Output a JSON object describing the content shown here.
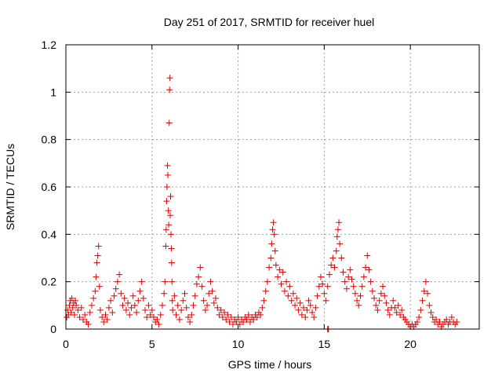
{
  "chart_data": {
    "type": "scatter",
    "title": "Day 251 of 2017, SRMTID for receiver huel",
    "xlabel": "GPS time / hours",
    "ylabel": "SRMTID / TECUs",
    "xlim": [
      0,
      24
    ],
    "ylim": [
      0,
      1.2
    ],
    "xticks": [
      0,
      5,
      10,
      15,
      20
    ],
    "yticks": [
      0,
      0.2,
      0.4,
      0.6,
      0.8,
      1,
      1.2
    ],
    "xtick_labels": [
      "0",
      "5",
      "10",
      "15",
      "20"
    ],
    "ytick_labels": [
      "0",
      "0.2",
      "0.4",
      "0.6",
      "0.8",
      "1",
      "1.2"
    ],
    "grid": true,
    "legend": "none",
    "marker": "plus",
    "color": "#dd0000",
    "series": [
      {
        "points": [
          [
            0.05,
            0.05
          ],
          [
            0.1,
            0.08
          ],
          [
            0.15,
            0.06
          ],
          [
            0.2,
            0.1
          ],
          [
            0.25,
            0.12
          ],
          [
            0.3,
            0.07
          ],
          [
            0.35,
            0.13
          ],
          [
            0.4,
            0.09
          ],
          [
            0.45,
            0.11
          ],
          [
            0.5,
            0.06
          ],
          [
            0.55,
            0.12
          ],
          [
            0.6,
            0.1
          ],
          [
            0.7,
            0.08
          ],
          [
            0.8,
            0.05
          ],
          [
            0.9,
            0.09
          ],
          [
            1.0,
            0.04
          ],
          [
            1.1,
            0.06
          ],
          [
            1.2,
            0.03
          ],
          [
            1.3,
            0.02
          ],
          [
            1.4,
            0.07
          ],
          [
            1.5,
            0.1
          ],
          [
            1.6,
            0.13
          ],
          [
            1.7,
            0.16
          ],
          [
            1.75,
            0.22
          ],
          [
            1.8,
            0.28
          ],
          [
            1.85,
            0.31
          ],
          [
            1.9,
            0.35
          ],
          [
            1.95,
            0.18
          ],
          [
            2.0,
            0.08
          ],
          [
            2.1,
            0.05
          ],
          [
            2.2,
            0.03
          ],
          [
            2.3,
            0.06
          ],
          [
            2.4,
            0.04
          ],
          [
            2.5,
            0.09
          ],
          [
            2.6,
            0.12
          ],
          [
            2.7,
            0.07
          ],
          [
            2.8,
            0.14
          ],
          [
            2.9,
            0.17
          ],
          [
            3.0,
            0.2
          ],
          [
            3.1,
            0.23
          ],
          [
            3.2,
            0.15
          ],
          [
            3.3,
            0.1
          ],
          [
            3.4,
            0.13
          ],
          [
            3.5,
            0.08
          ],
          [
            3.6,
            0.11
          ],
          [
            3.7,
            0.06
          ],
          [
            3.8,
            0.09
          ],
          [
            3.9,
            0.14
          ],
          [
            4.0,
            0.1
          ],
          [
            4.1,
            0.07
          ],
          [
            4.2,
            0.12
          ],
          [
            4.3,
            0.16
          ],
          [
            4.4,
            0.2
          ],
          [
            4.5,
            0.13
          ],
          [
            4.6,
            0.08
          ],
          [
            4.7,
            0.05
          ],
          [
            4.8,
            0.1
          ],
          [
            4.9,
            0.06
          ],
          [
            5.0,
            0.08
          ],
          [
            5.1,
            0.05
          ],
          [
            5.2,
            0.03
          ],
          [
            5.3,
            0.04
          ],
          [
            5.4,
            0.02
          ],
          [
            5.5,
            0.06
          ],
          [
            5.6,
            0.1
          ],
          [
            5.7,
            0.15
          ],
          [
            5.75,
            0.2
          ],
          [
            5.8,
            0.35
          ],
          [
            5.82,
            0.42
          ],
          [
            5.85,
            0.54
          ],
          [
            5.87,
            0.6
          ],
          [
            5.9,
            0.69
          ],
          [
            5.92,
            0.65
          ],
          [
            5.95,
            0.5
          ],
          [
            5.97,
            0.44
          ],
          [
            6.0,
            0.87
          ],
          [
            6.02,
            1.01
          ],
          [
            6.04,
            1.06
          ],
          [
            6.06,
            0.48
          ],
          [
            6.08,
            0.56
          ],
          [
            6.1,
            0.4
          ],
          [
            6.12,
            0.34
          ],
          [
            6.14,
            0.28
          ],
          [
            6.16,
            0.2
          ],
          [
            6.18,
            0.12
          ],
          [
            6.2,
            0.08
          ],
          [
            6.3,
            0.14
          ],
          [
            6.4,
            0.06
          ],
          [
            6.5,
            0.1
          ],
          [
            6.6,
            0.04
          ],
          [
            6.7,
            0.08
          ],
          [
            6.8,
            0.12
          ],
          [
            6.9,
            0.15
          ],
          [
            7.0,
            0.09
          ],
          [
            7.1,
            0.05
          ],
          [
            7.2,
            0.03
          ],
          [
            7.3,
            0.06
          ],
          [
            7.4,
            0.1
          ],
          [
            7.5,
            0.14
          ],
          [
            7.6,
            0.19
          ],
          [
            7.7,
            0.22
          ],
          [
            7.8,
            0.26
          ],
          [
            7.9,
            0.18
          ],
          [
            8.0,
            0.12
          ],
          [
            8.1,
            0.08
          ],
          [
            8.2,
            0.1
          ],
          [
            8.3,
            0.15
          ],
          [
            8.4,
            0.2
          ],
          [
            8.5,
            0.16
          ],
          [
            8.6,
            0.11
          ],
          [
            8.7,
            0.13
          ],
          [
            8.8,
            0.09
          ],
          [
            8.9,
            0.06
          ],
          [
            9.0,
            0.08
          ],
          [
            9.1,
            0.05
          ],
          [
            9.2,
            0.07
          ],
          [
            9.3,
            0.04
          ],
          [
            9.4,
            0.06
          ],
          [
            9.5,
            0.03
          ],
          [
            9.6,
            0.05
          ],
          [
            9.7,
            0.02
          ],
          [
            9.8,
            0.04
          ],
          [
            9.9,
            0.03
          ],
          [
            10.0,
            0.05
          ],
          [
            10.1,
            0.02
          ],
          [
            10.2,
            0.04
          ],
          [
            10.3,
            0.03
          ],
          [
            10.4,
            0.05
          ],
          [
            10.5,
            0.04
          ],
          [
            10.6,
            0.06
          ],
          [
            10.7,
            0.03
          ],
          [
            10.8,
            0.05
          ],
          [
            10.9,
            0.04
          ],
          [
            11.0,
            0.06
          ],
          [
            11.1,
            0.05
          ],
          [
            11.2,
            0.07
          ],
          [
            11.3,
            0.06
          ],
          [
            11.4,
            0.09
          ],
          [
            11.5,
            0.12
          ],
          [
            11.6,
            0.16
          ],
          [
            11.7,
            0.2
          ],
          [
            11.8,
            0.26
          ],
          [
            11.9,
            0.3
          ],
          [
            11.95,
            0.36
          ],
          [
            12.0,
            0.42
          ],
          [
            12.05,
            0.45
          ],
          [
            12.1,
            0.4
          ],
          [
            12.15,
            0.33
          ],
          [
            12.2,
            0.27
          ],
          [
            12.3,
            0.22
          ],
          [
            12.4,
            0.25
          ],
          [
            12.5,
            0.19
          ],
          [
            12.6,
            0.24
          ],
          [
            12.7,
            0.16
          ],
          [
            12.8,
            0.2
          ],
          [
            12.9,
            0.14
          ],
          [
            13.0,
            0.18
          ],
          [
            13.1,
            0.12
          ],
          [
            13.2,
            0.15
          ],
          [
            13.3,
            0.1
          ],
          [
            13.4,
            0.13
          ],
          [
            13.5,
            0.08
          ],
          [
            13.6,
            0.11
          ],
          [
            13.7,
            0.06
          ],
          [
            13.8,
            0.09
          ],
          [
            13.9,
            0.05
          ],
          [
            14.0,
            0.08
          ],
          [
            14.1,
            0.12
          ],
          [
            14.2,
            0.1
          ],
          [
            14.3,
            0.07
          ],
          [
            14.4,
            0.05
          ],
          [
            14.5,
            0.09
          ],
          [
            14.6,
            0.14
          ],
          [
            14.7,
            0.18
          ],
          [
            14.8,
            0.22
          ],
          [
            14.9,
            0.19
          ],
          [
            15.0,
            0.15
          ],
          [
            15.1,
            0.12
          ],
          [
            15.2,
            0.18
          ],
          [
            15.3,
            0.23
          ],
          [
            15.4,
            0.27
          ],
          [
            15.5,
            0.3
          ],
          [
            15.6,
            0.26
          ],
          [
            15.7,
            0.33
          ],
          [
            15.75,
            0.39
          ],
          [
            15.8,
            0.42
          ],
          [
            15.85,
            0.45
          ],
          [
            15.9,
            0.36
          ],
          [
            16.0,
            0.3
          ],
          [
            16.1,
            0.24
          ],
          [
            16.2,
            0.2
          ],
          [
            16.3,
            0.17
          ],
          [
            16.4,
            0.22
          ],
          [
            16.5,
            0.25
          ],
          [
            16.6,
            0.21
          ],
          [
            16.7,
            0.18
          ],
          [
            16.8,
            0.15
          ],
          [
            16.9,
            0.12
          ],
          [
            17.0,
            0.1
          ],
          [
            17.1,
            0.14
          ],
          [
            17.2,
            0.18
          ],
          [
            17.3,
            0.22
          ],
          [
            17.4,
            0.26
          ],
          [
            17.5,
            0.31
          ],
          [
            17.6,
            0.25
          ],
          [
            17.7,
            0.2
          ],
          [
            17.8,
            0.16
          ],
          [
            17.9,
            0.13
          ],
          [
            18.0,
            0.1
          ],
          [
            18.1,
            0.08
          ],
          [
            18.2,
            0.12
          ],
          [
            18.3,
            0.15
          ],
          [
            18.4,
            0.18
          ],
          [
            18.5,
            0.14
          ],
          [
            18.6,
            0.11
          ],
          [
            18.7,
            0.08
          ],
          [
            18.8,
            0.06
          ],
          [
            18.9,
            0.09
          ],
          [
            19.0,
            0.12
          ],
          [
            19.1,
            0.09
          ],
          [
            19.2,
            0.07
          ],
          [
            19.3,
            0.1
          ],
          [
            19.4,
            0.06
          ],
          [
            19.5,
            0.08
          ],
          [
            19.6,
            0.05
          ],
          [
            19.7,
            0.04
          ],
          [
            19.8,
            0.03
          ],
          [
            19.9,
            0.02
          ],
          [
            20.0,
            0.01
          ],
          [
            20.1,
            0.02
          ],
          [
            20.2,
            0.01
          ],
          [
            20.3,
            0.02
          ],
          [
            20.4,
            0.03
          ],
          [
            20.5,
            0.05
          ],
          [
            20.6,
            0.08
          ],
          [
            20.7,
            0.12
          ],
          [
            20.8,
            0.16
          ],
          [
            20.9,
            0.2
          ],
          [
            21.0,
            0.15
          ],
          [
            21.1,
            0.1
          ],
          [
            21.2,
            0.07
          ],
          [
            21.3,
            0.05
          ],
          [
            21.4,
            0.03
          ],
          [
            21.5,
            0.04
          ],
          [
            21.6,
            0.02
          ],
          [
            21.7,
            0.03
          ],
          [
            21.8,
            0.01
          ],
          [
            21.9,
            0.02
          ],
          [
            22.0,
            0.03
          ],
          [
            22.1,
            0.04
          ],
          [
            22.2,
            0.02
          ],
          [
            22.3,
            0.03
          ],
          [
            22.4,
            0.05
          ],
          [
            22.5,
            0.03
          ],
          [
            22.6,
            0.02
          ],
          [
            22.7,
            0.03
          ],
          [
            15.2,
            0.0
          ],
          [
            15.22,
            0.0
          ],
          [
            15.24,
            0.0
          ]
        ]
      }
    ]
  }
}
